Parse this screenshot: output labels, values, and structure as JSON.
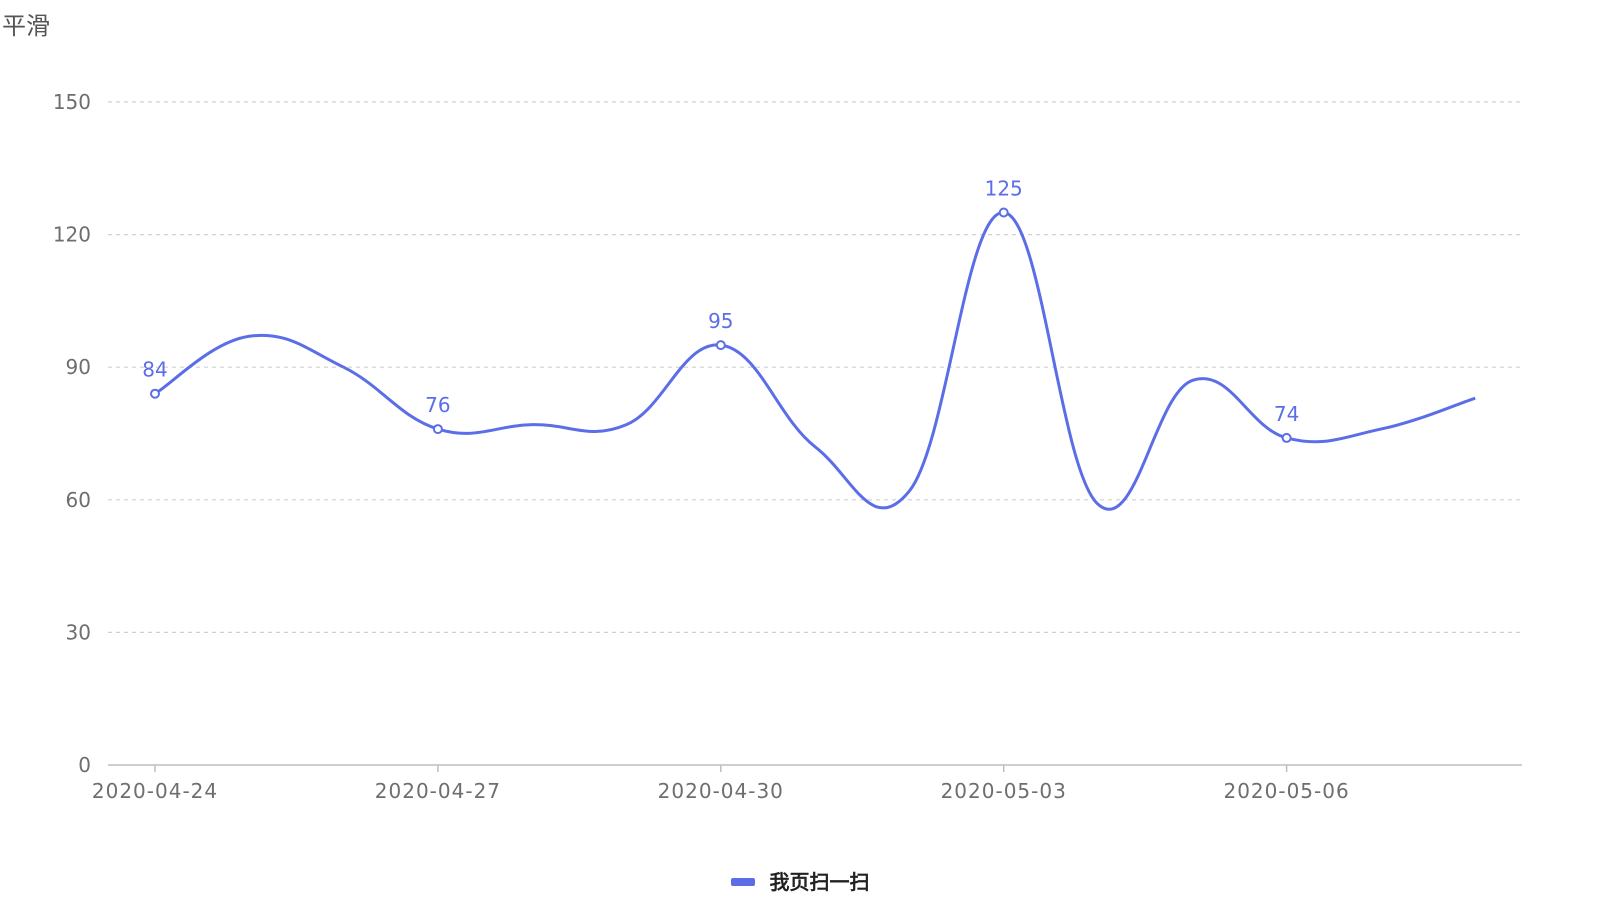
{
  "chart_data": {
    "type": "line",
    "smooth": true,
    "title": "平滑",
    "x": [
      "2020-04-24",
      "2020-04-25",
      "2020-04-26",
      "2020-04-27",
      "2020-04-28",
      "2020-04-29",
      "2020-04-30",
      "2020-05-01",
      "2020-05-02",
      "2020-05-03",
      "2020-05-04",
      "2020-05-05",
      "2020-05-06",
      "2020-05-07",
      "2020-05-08"
    ],
    "x_tick_labels": [
      "2020-04-24",
      "2020-04-27",
      "2020-04-30",
      "2020-05-03",
      "2020-05-06"
    ],
    "y_ticks": [
      0,
      30,
      60,
      90,
      120,
      150
    ],
    "ylim": [
      0,
      150
    ],
    "grid": "horizontal dashed",
    "legend_position": "bottom-center",
    "series": [
      {
        "name": "我页扫一扫",
        "color": "#5b6ee8",
        "values": [
          84,
          97,
          90,
          76,
          77,
          77,
          95,
          72,
          62,
          125,
          59,
          87,
          74,
          76,
          83
        ],
        "labeled_points": [
          {
            "x": "2020-04-24",
            "label": "84"
          },
          {
            "x": "2020-04-27",
            "label": "76"
          },
          {
            "x": "2020-04-30",
            "label": "95"
          },
          {
            "x": "2020-05-03",
            "label": "125"
          },
          {
            "x": "2020-05-06",
            "label": "74"
          }
        ]
      }
    ]
  }
}
